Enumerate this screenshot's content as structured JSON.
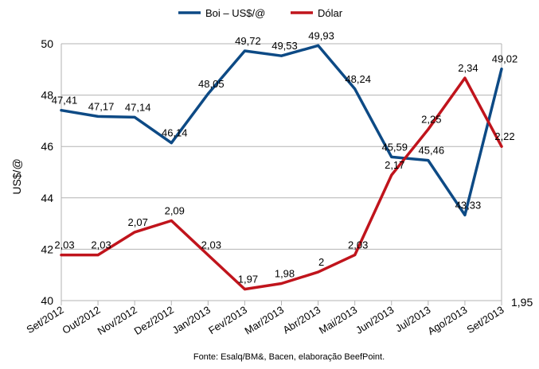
{
  "chart_data": {
    "type": "line",
    "categories": [
      "Set/2012",
      "Out/2012",
      "Nov/2012",
      "Dez/2012",
      "Jan/2013",
      "Fev/2013",
      "Mar/2013",
      "Abr/2013",
      "Mai/2013",
      "Jun/2013",
      "Jul/2013",
      "Ago/2013",
      "Set/2013"
    ],
    "series": [
      {
        "name": "Boi – US$/@",
        "color": "#0d4a85",
        "axis": "left",
        "values": [
          47.41,
          47.17,
          47.14,
          46.14,
          48.05,
          49.72,
          49.53,
          49.93,
          48.24,
          45.59,
          45.46,
          43.33,
          49.02
        ],
        "labels": [
          "47,41",
          "47,17",
          "47,14",
          "46,14",
          "48,05",
          "49,72",
          "49,53",
          "49,93",
          "48,24",
          "45,59",
          "45,46",
          "43,33",
          "49,02"
        ]
      },
      {
        "name": "Dólar",
        "color": "#c0141c",
        "axis": "right",
        "values": [
          2.03,
          2.03,
          2.07,
          2.09,
          2.03,
          1.97,
          1.98,
          2.0,
          2.03,
          2.17,
          2.25,
          2.34,
          2.22
        ],
        "labels": [
          "2,03",
          "2,03",
          "2,07",
          "2,09",
          "2,03",
          "1,97",
          "1,98",
          "2",
          "2,03",
          "2,17",
          "2,25",
          "2,34",
          "2,22"
        ]
      }
    ],
    "ylabel": "US$/@",
    "ylim": [
      40,
      50
    ],
    "yticks": [
      "40",
      "42",
      "44",
      "46",
      "48",
      "50"
    ],
    "y2lim": [
      1.95,
      2.4
    ],
    "y2ticks": [
      "1,95"
    ],
    "grid": true,
    "legend": "top-center",
    "source": "Fonte: Esalq/BM&, Bacen, elaboração BeefPoint."
  }
}
